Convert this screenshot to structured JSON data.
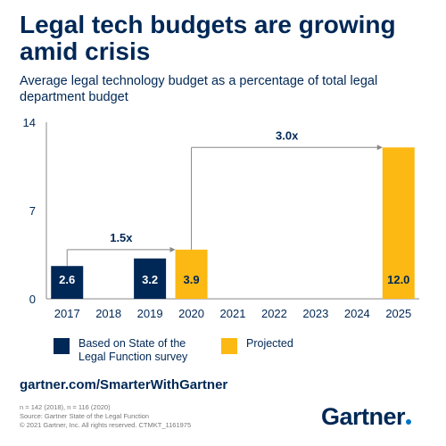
{
  "title": "Legal tech budgets are growing amid crisis",
  "subtitle": "Average legal technology budget as a percentage of total legal department budget",
  "chart_data": {
    "type": "bar",
    "categories": [
      "2017",
      "2018",
      "2019",
      "2020",
      "2021",
      "2022",
      "2023",
      "2024",
      "2025"
    ],
    "values": [
      2.6,
      null,
      3.2,
      3.9,
      null,
      null,
      null,
      null,
      12.0
    ],
    "value_labels": [
      "2.6",
      "",
      "3.2",
      "3.9",
      "",
      "",
      "",
      "",
      "12.0"
    ],
    "kinds": [
      "survey",
      "none",
      "survey",
      "projected",
      "none",
      "none",
      "none",
      "none",
      "projected"
    ],
    "ylim": [
      0,
      14
    ],
    "yticks": [
      "0",
      "7",
      "14"
    ],
    "ytick_values": [
      0,
      7,
      14
    ],
    "colors": {
      "survey": "#002856",
      "projected": "#fcb813",
      "axis": "#8a8a8a",
      "arrow": "#888888"
    },
    "annotations": [
      {
        "text": "1.5x",
        "from": "2017",
        "to": "2020"
      },
      {
        "text": "3.0x",
        "from": "2020",
        "to": "2025"
      }
    ]
  },
  "legend": [
    {
      "label_line1": "Based on State of the",
      "label_line2": "Legal Function survey",
      "color": "#002856"
    },
    {
      "label_line1": "Projected",
      "label_line2": "",
      "color": "#fcb813"
    }
  ],
  "url": "gartner.com/SmarterWithGartner",
  "footnotes": [
    "n = 142 (2018), n = 116 (2020)",
    "Source: Gartner State of the Legal Function",
    "© 2021 Gartner, Inc. All rights reserved. CTMKT_1161975"
  ],
  "logo": "Gartner"
}
